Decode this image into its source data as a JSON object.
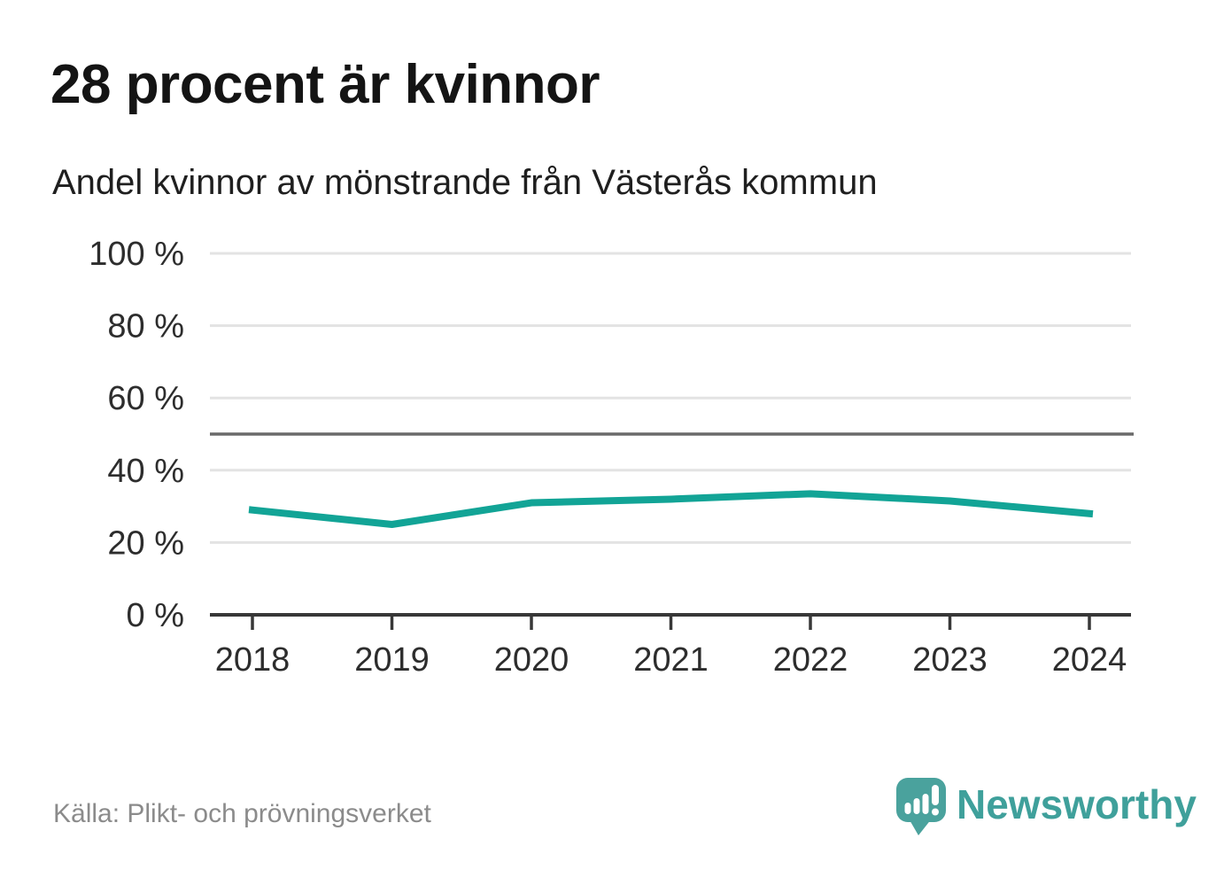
{
  "title": "28 procent är kvinnor",
  "subtitle": "Andel kvinnor av mönstrande från Västerås kommun",
  "source": "Källa: Plikt- och prövningsverket",
  "brand": {
    "name": "Newsworthy"
  },
  "colors": {
    "series_line": "#12A496",
    "brand_teal": "#4AA29D",
    "grid": "#E3E3E3",
    "reference_line": "#6A6A6A",
    "axis": "#383838",
    "tick_label": "#2D2D2D",
    "title_text": "#141414",
    "source_text": "#8B8B8B"
  },
  "chart_data": {
    "type": "line",
    "title": "28 procent är kvinnor",
    "subtitle": "Andel kvinnor av mönstrande från Västerås kommun",
    "x": [
      2018,
      2019,
      2020,
      2021,
      2022,
      2023,
      2024
    ],
    "series": [
      {
        "name": "Andel kvinnor av mönstrande",
        "values": [
          29,
          25,
          31,
          32,
          33.5,
          31.5,
          28
        ]
      }
    ],
    "ylim": [
      0,
      100
    ],
    "yticks": [
      0,
      20,
      40,
      60,
      80,
      100
    ],
    "ytick_format": "{v} %",
    "reference_line": 50,
    "grid": "horizontal",
    "legend": "none"
  }
}
